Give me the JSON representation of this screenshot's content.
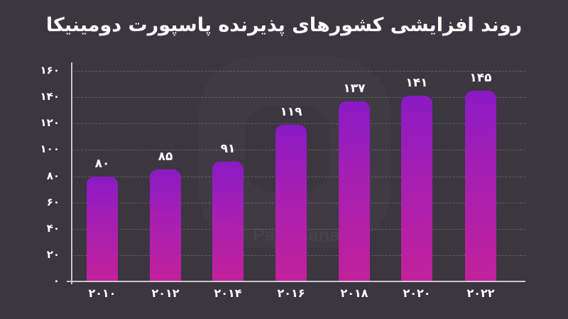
{
  "header": {
    "title": "روند افزایشی کشورهای پذیرنده پاسپورت دومینیکا"
  },
  "watermark": {
    "text": "Parsicanada"
  },
  "colors": {
    "background": "#3b3640",
    "bar_top": "#8a1ac4",
    "bar_bottom": "#c2219a",
    "axis": "#c9c6cc",
    "text": "#ffffff"
  },
  "axis": {
    "y_ticks": [
      "۰",
      "۲۰",
      "۴۰",
      "۶۰",
      "۸۰",
      "۱۰۰",
      "۱۲۰",
      "۱۴۰",
      "۱۶۰"
    ],
    "x_ticks": [
      "۲۰۱۰",
      "۲۰۱۲",
      "۲۰۱۴",
      "۲۰۱۶",
      "۲۰۱۸",
      "۲۰۲۰",
      "۲۰۲۲"
    ]
  },
  "bars": [
    {
      "year": "۲۰۱۰",
      "label": "۸۰",
      "value": 80
    },
    {
      "year": "۲۰۱۲",
      "label": "۸۵",
      "value": 85
    },
    {
      "year": "۲۰۱۴",
      "label": "۹۱",
      "value": 91
    },
    {
      "year": "۲۰۱۶",
      "label": "۱۱۹",
      "value": 119
    },
    {
      "year": "۲۰۱۸",
      "label": "۱۳۷",
      "value": 137
    },
    {
      "year": "۲۰۲۰",
      "label": "۱۴۱",
      "value": 141
    },
    {
      "year": "۲۰۲۲",
      "label": "۱۴۵",
      "value": 145
    }
  ],
  "chart_data": {
    "type": "bar",
    "title": "روند افزایشی کشورهای پذیرنده پاسپورت دومینیکا",
    "categories": [
      "2010",
      "2012",
      "2014",
      "2016",
      "2018",
      "2020",
      "2022"
    ],
    "values": [
      80,
      85,
      91,
      119,
      137,
      141,
      145
    ],
    "xlabel": "",
    "ylabel": "",
    "ylim": [
      0,
      160
    ],
    "yticks": [
      0,
      20,
      40,
      60,
      80,
      100,
      120,
      140,
      160
    ],
    "grid": true,
    "legend": null,
    "data_labels": true
  }
}
